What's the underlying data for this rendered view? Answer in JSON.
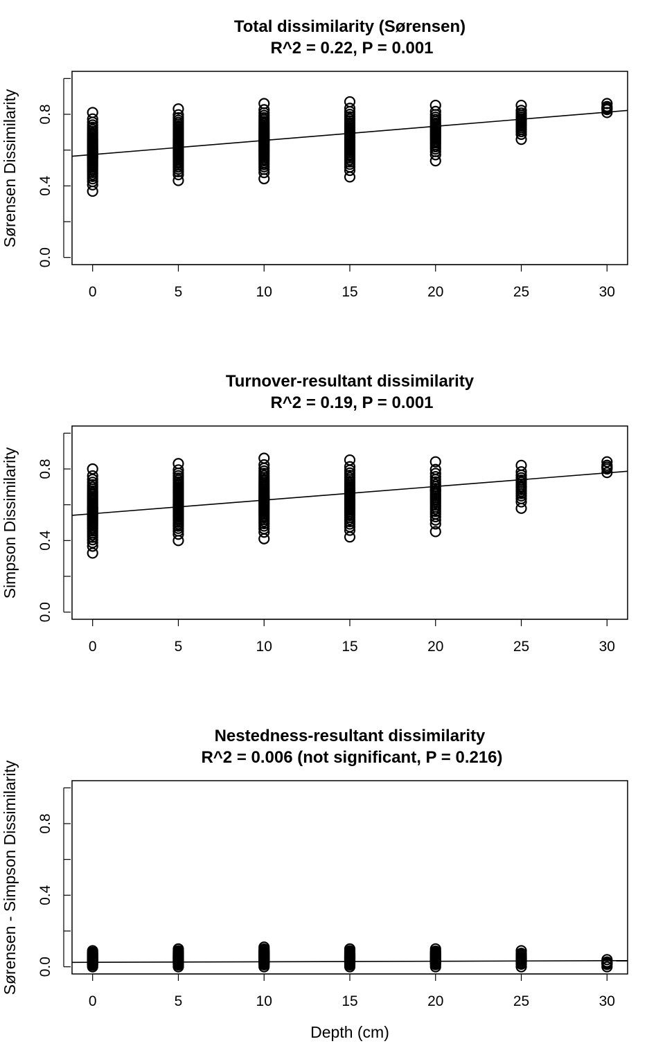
{
  "figure": {
    "xlabel": "Depth (cm)"
  },
  "chart_data": [
    {
      "type": "scatter",
      "title": "Total dissimilarity (Sørensen)",
      "subtitle": "R^2 = 0.22, P = 0.001",
      "xlabel": "",
      "ylabel": "Sørensen Dissimilarity",
      "xlim": [
        -1.2,
        31.2
      ],
      "ylim": [
        -0.04,
        1.04
      ],
      "xticks": [
        0,
        5,
        10,
        15,
        20,
        25,
        30
      ],
      "yticks": [
        0.0,
        0.2,
        0.4,
        0.6,
        0.8,
        1.0
      ],
      "ytick_labels": [
        "0.0",
        "",
        "0.4",
        "",
        "0.8",
        ""
      ],
      "fit_line": {
        "intercept": 0.575,
        "slope": 0.0079
      },
      "groups": [
        {
          "x": 0,
          "min": 0.37,
          "max": 0.81,
          "center": 0.56,
          "n": 42
        },
        {
          "x": 5,
          "min": 0.43,
          "max": 0.83,
          "center": 0.62,
          "n": 42
        },
        {
          "x": 10,
          "min": 0.44,
          "max": 0.86,
          "center": 0.65,
          "n": 42
        },
        {
          "x": 15,
          "min": 0.45,
          "max": 0.87,
          "center": 0.7,
          "n": 38
        },
        {
          "x": 20,
          "min": 0.54,
          "max": 0.85,
          "center": 0.73,
          "n": 26
        },
        {
          "x": 25,
          "min": 0.66,
          "max": 0.85,
          "center": 0.77,
          "n": 16
        },
        {
          "x": 30,
          "min": 0.81,
          "max": 0.86,
          "center": 0.83,
          "n": 5
        }
      ]
    },
    {
      "type": "scatter",
      "title": "Turnover-resultant dissimilarity",
      "subtitle": "R^2 = 0.19, P = 0.001",
      "xlabel": "",
      "ylabel": "Simpson Dissimilarity",
      "xlim": [
        -1.2,
        31.2
      ],
      "ylim": [
        -0.04,
        1.04
      ],
      "xticks": [
        0,
        5,
        10,
        15,
        20,
        25,
        30
      ],
      "yticks": [
        0.0,
        0.2,
        0.4,
        0.6,
        0.8,
        1.0
      ],
      "ytick_labels": [
        "0.0",
        "",
        "0.4",
        "",
        "0.8",
        ""
      ],
      "fit_line": {
        "intercept": 0.55,
        "slope": 0.0076
      },
      "groups": [
        {
          "x": 0,
          "min": 0.33,
          "max": 0.8,
          "center": 0.58,
          "n": 42
        },
        {
          "x": 5,
          "min": 0.4,
          "max": 0.83,
          "center": 0.6,
          "n": 42
        },
        {
          "x": 10,
          "min": 0.41,
          "max": 0.86,
          "center": 0.64,
          "n": 42
        },
        {
          "x": 15,
          "min": 0.42,
          "max": 0.85,
          "center": 0.68,
          "n": 38
        },
        {
          "x": 20,
          "min": 0.45,
          "max": 0.84,
          "center": 0.68,
          "n": 26
        },
        {
          "x": 25,
          "min": 0.58,
          "max": 0.82,
          "center": 0.7,
          "n": 16
        },
        {
          "x": 30,
          "min": 0.78,
          "max": 0.84,
          "center": 0.81,
          "n": 5
        }
      ]
    },
    {
      "type": "scatter",
      "title": "Nestedness-resultant dissimilarity",
      "subtitle": "R^2 = 0.006 (not significant, P = 0.216)",
      "xlabel": "Depth (cm)",
      "ylabel": "Sørensen - Simpson Dissimilarity",
      "xlim": [
        -1.2,
        31.2
      ],
      "ylim": [
        -0.04,
        1.04
      ],
      "xticks": [
        0,
        5,
        10,
        15,
        20,
        25,
        30
      ],
      "yticks": [
        0.0,
        0.2,
        0.4,
        0.6,
        0.8,
        1.0
      ],
      "ytick_labels": [
        "0.0",
        "",
        "0.4",
        "",
        "0.8",
        ""
      ],
      "fit_line": {
        "intercept": 0.025,
        "slope": 0.0003
      },
      "groups": [
        {
          "x": 0,
          "min": 0.0,
          "max": 0.09,
          "center": 0.03,
          "n": 30
        },
        {
          "x": 5,
          "min": 0.0,
          "max": 0.1,
          "center": 0.03,
          "n": 30
        },
        {
          "x": 10,
          "min": 0.0,
          "max": 0.11,
          "center": 0.03,
          "n": 30
        },
        {
          "x": 15,
          "min": 0.0,
          "max": 0.1,
          "center": 0.03,
          "n": 30
        },
        {
          "x": 20,
          "min": 0.0,
          "max": 0.1,
          "center": 0.03,
          "n": 22
        },
        {
          "x": 25,
          "min": 0.0,
          "max": 0.09,
          "center": 0.03,
          "n": 14
        },
        {
          "x": 30,
          "min": 0.0,
          "max": 0.04,
          "center": 0.02,
          "n": 5
        }
      ]
    }
  ]
}
